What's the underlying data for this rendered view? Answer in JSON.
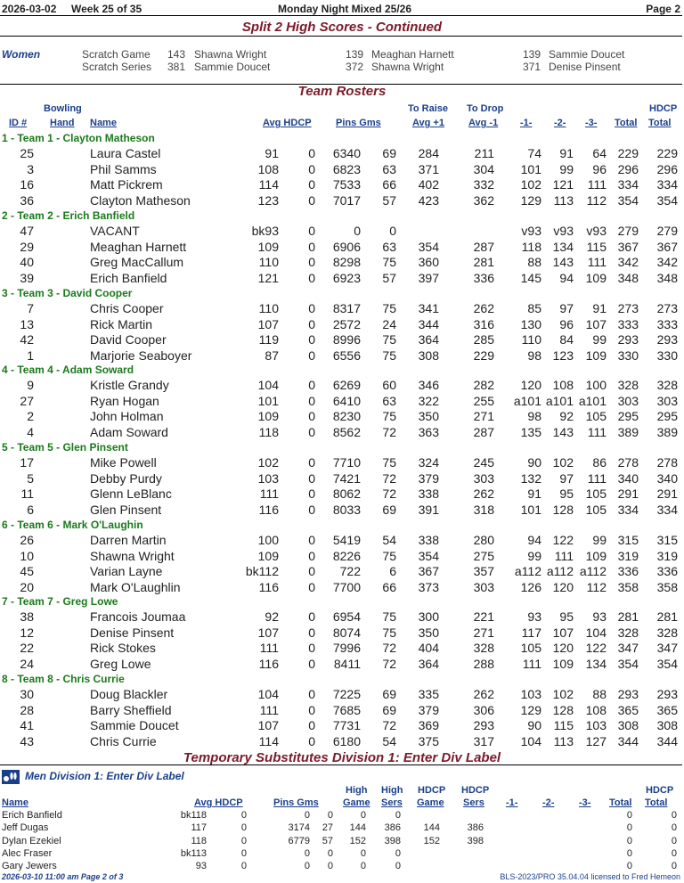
{
  "header": {
    "date": "2026-03-02",
    "week": "Week 25 of 35",
    "league": "Monday Night Mixed 25/26",
    "page": "Page 2"
  },
  "split_title": "Split 2 High Scores - Continued",
  "women": {
    "label": "Women",
    "rows": [
      {
        "cat": "Scratch Game",
        "a_score": "143",
        "a_name": "Shawna Wright",
        "b_score": "139",
        "b_name": "Meaghan Harnett",
        "c_score": "139",
        "c_name": "Sammie Doucet"
      },
      {
        "cat": "Scratch Series",
        "a_score": "381",
        "a_name": "Sammie Doucet",
        "b_score": "372",
        "b_name": "Shawna Wright",
        "c_score": "371",
        "c_name": "Denise Pinsent"
      }
    ]
  },
  "rosters_title": "Team Rosters",
  "roster_columns": {
    "id": "ID #",
    "hand_top": "Bowling",
    "hand": "Hand",
    "name": "Name",
    "avg": "Avg HDCP",
    "pins": "Pins Gms",
    "raise_top": "To Raise",
    "raise": "Avg +1",
    "drop_top": "To Drop",
    "drop": "Avg -1",
    "g1": "-1-",
    "g2": "-2-",
    "g3": "-3-",
    "total": "Total",
    "hdcp_top": "HDCP",
    "hdcp_total": "Total"
  },
  "teams": [
    {
      "title": "1 - Team 1 - Clayton Matheson",
      "players": [
        {
          "id": "25",
          "name": "Laura Castel",
          "avg": "91",
          "hdcp": "0",
          "pins": "6340",
          "gms": "69",
          "raise": "284",
          "drop": "211",
          "g1": "74",
          "g2": "91",
          "g3": "64",
          "total": "229",
          "htotal": "229"
        },
        {
          "id": "3",
          "name": "Phil Samms",
          "avg": "108",
          "hdcp": "0",
          "pins": "6823",
          "gms": "63",
          "raise": "371",
          "drop": "304",
          "g1": "101",
          "g2": "99",
          "g3": "96",
          "total": "296",
          "htotal": "296"
        },
        {
          "id": "16",
          "name": "Matt Pickrem",
          "avg": "114",
          "hdcp": "0",
          "pins": "7533",
          "gms": "66",
          "raise": "402",
          "drop": "332",
          "g1": "102",
          "g2": "121",
          "g3": "111",
          "total": "334",
          "htotal": "334"
        },
        {
          "id": "36",
          "name": "Clayton Matheson",
          "avg": "123",
          "hdcp": "0",
          "pins": "7017",
          "gms": "57",
          "raise": "423",
          "drop": "362",
          "g1": "129",
          "g2": "113",
          "g3": "112",
          "total": "354",
          "htotal": "354"
        }
      ]
    },
    {
      "title": "2 - Team 2 - Erich Banfield",
      "players": [
        {
          "id": "47",
          "name": "VACANT",
          "avg": "bk93",
          "hdcp": "0",
          "pins": "0",
          "gms": "0",
          "raise": "",
          "drop": "",
          "g1": "v93",
          "g2": "v93",
          "g3": "v93",
          "total": "279",
          "htotal": "279"
        },
        {
          "id": "29",
          "name": "Meaghan Harnett",
          "avg": "109",
          "hdcp": "0",
          "pins": "6906",
          "gms": "63",
          "raise": "354",
          "drop": "287",
          "g1": "118",
          "g2": "134",
          "g3": "115",
          "total": "367",
          "htotal": "367"
        },
        {
          "id": "40",
          "name": "Greg MacCallum",
          "avg": "110",
          "hdcp": "0",
          "pins": "8298",
          "gms": "75",
          "raise": "360",
          "drop": "281",
          "g1": "88",
          "g2": "143",
          "g3": "111",
          "total": "342",
          "htotal": "342"
        },
        {
          "id": "39",
          "name": "Erich Banfield",
          "avg": "121",
          "hdcp": "0",
          "pins": "6923",
          "gms": "57",
          "raise": "397",
          "drop": "336",
          "g1": "145",
          "g2": "94",
          "g3": "109",
          "total": "348",
          "htotal": "348"
        }
      ]
    },
    {
      "title": "3 - Team 3 - David Cooper",
      "players": [
        {
          "id": "7",
          "name": "Chris Cooper",
          "avg": "110",
          "hdcp": "0",
          "pins": "8317",
          "gms": "75",
          "raise": "341",
          "drop": "262",
          "g1": "85",
          "g2": "97",
          "g3": "91",
          "total": "273",
          "htotal": "273"
        },
        {
          "id": "13",
          "name": "Rick Martin",
          "avg": "107",
          "hdcp": "0",
          "pins": "2572",
          "gms": "24",
          "raise": "344",
          "drop": "316",
          "g1": "130",
          "g2": "96",
          "g3": "107",
          "total": "333",
          "htotal": "333"
        },
        {
          "id": "42",
          "name": "David Cooper",
          "avg": "119",
          "hdcp": "0",
          "pins": "8996",
          "gms": "75",
          "raise": "364",
          "drop": "285",
          "g1": "110",
          "g2": "84",
          "g3": "99",
          "total": "293",
          "htotal": "293"
        },
        {
          "id": "1",
          "name": "Marjorie Seaboyer",
          "avg": "87",
          "hdcp": "0",
          "pins": "6556",
          "gms": "75",
          "raise": "308",
          "drop": "229",
          "g1": "98",
          "g2": "123",
          "g3": "109",
          "total": "330",
          "htotal": "330"
        }
      ]
    },
    {
      "title": "4 - Team 4 - Adam Soward",
      "players": [
        {
          "id": "9",
          "name": "Kristle Grandy",
          "avg": "104",
          "hdcp": "0",
          "pins": "6269",
          "gms": "60",
          "raise": "346",
          "drop": "282",
          "g1": "120",
          "g2": "108",
          "g3": "100",
          "total": "328",
          "htotal": "328"
        },
        {
          "id": "27",
          "name": "Ryan Hogan",
          "avg": "101",
          "hdcp": "0",
          "pins": "6410",
          "gms": "63",
          "raise": "322",
          "drop": "255",
          "g1": "a101",
          "g2": "a101",
          "g3": "a101",
          "total": "303",
          "htotal": "303"
        },
        {
          "id": "2",
          "name": "John Holman",
          "avg": "109",
          "hdcp": "0",
          "pins": "8230",
          "gms": "75",
          "raise": "350",
          "drop": "271",
          "g1": "98",
          "g2": "92",
          "g3": "105",
          "total": "295",
          "htotal": "295"
        },
        {
          "id": "4",
          "name": "Adam Soward",
          "avg": "118",
          "hdcp": "0",
          "pins": "8562",
          "gms": "72",
          "raise": "363",
          "drop": "287",
          "g1": "135",
          "g2": "143",
          "g3": "111",
          "total": "389",
          "htotal": "389"
        }
      ]
    },
    {
      "title": "5 - Team 5 - Glen Pinsent",
      "players": [
        {
          "id": "17",
          "name": "Mike Powell",
          "avg": "102",
          "hdcp": "0",
          "pins": "7710",
          "gms": "75",
          "raise": "324",
          "drop": "245",
          "g1": "90",
          "g2": "102",
          "g3": "86",
          "total": "278",
          "htotal": "278"
        },
        {
          "id": "5",
          "name": "Debby Purdy",
          "avg": "103",
          "hdcp": "0",
          "pins": "7421",
          "gms": "72",
          "raise": "379",
          "drop": "303",
          "g1": "132",
          "g2": "97",
          "g3": "111",
          "total": "340",
          "htotal": "340"
        },
        {
          "id": "11",
          "name": "Glenn LeBlanc",
          "avg": "111",
          "hdcp": "0",
          "pins": "8062",
          "gms": "72",
          "raise": "338",
          "drop": "262",
          "g1": "91",
          "g2": "95",
          "g3": "105",
          "total": "291",
          "htotal": "291"
        },
        {
          "id": "6",
          "name": "Glen Pinsent",
          "avg": "116",
          "hdcp": "0",
          "pins": "8033",
          "gms": "69",
          "raise": "391",
          "drop": "318",
          "g1": "101",
          "g2": "128",
          "g3": "105",
          "total": "334",
          "htotal": "334"
        }
      ]
    },
    {
      "title": "6 - Team 6 - Mark O'Laughin",
      "players": [
        {
          "id": "26",
          "name": "Darren Martin",
          "avg": "100",
          "hdcp": "0",
          "pins": "5419",
          "gms": "54",
          "raise": "338",
          "drop": "280",
          "g1": "94",
          "g2": "122",
          "g3": "99",
          "total": "315",
          "htotal": "315"
        },
        {
          "id": "10",
          "name": "Shawna Wright",
          "avg": "109",
          "hdcp": "0",
          "pins": "8226",
          "gms": "75",
          "raise": "354",
          "drop": "275",
          "g1": "99",
          "g2": "111",
          "g3": "109",
          "total": "319",
          "htotal": "319"
        },
        {
          "id": "45",
          "name": "Varian Layne",
          "avg": "bk112",
          "hdcp": "0",
          "pins": "722",
          "gms": "6",
          "raise": "367",
          "drop": "357",
          "g1": "a112",
          "g2": "a112",
          "g3": "a112",
          "total": "336",
          "htotal": "336"
        },
        {
          "id": "20",
          "name": "Mark O'Laughlin",
          "avg": "116",
          "hdcp": "0",
          "pins": "7700",
          "gms": "66",
          "raise": "373",
          "drop": "303",
          "g1": "126",
          "g2": "120",
          "g3": "112",
          "total": "358",
          "htotal": "358"
        }
      ]
    },
    {
      "title": "7 - Team 7 - Greg Lowe",
      "players": [
        {
          "id": "38",
          "name": "Francois Joumaa",
          "avg": "92",
          "hdcp": "0",
          "pins": "6954",
          "gms": "75",
          "raise": "300",
          "drop": "221",
          "g1": "93",
          "g2": "95",
          "g3": "93",
          "total": "281",
          "htotal": "281"
        },
        {
          "id": "12",
          "name": "Denise Pinsent",
          "avg": "107",
          "hdcp": "0",
          "pins": "8074",
          "gms": "75",
          "raise": "350",
          "drop": "271",
          "g1": "117",
          "g2": "107",
          "g3": "104",
          "total": "328",
          "htotal": "328"
        },
        {
          "id": "22",
          "name": "Rick Stokes",
          "avg": "111",
          "hdcp": "0",
          "pins": "7996",
          "gms": "72",
          "raise": "404",
          "drop": "328",
          "g1": "105",
          "g2": "120",
          "g3": "122",
          "total": "347",
          "htotal": "347"
        },
        {
          "id": "24",
          "name": "Greg Lowe",
          "avg": "116",
          "hdcp": "0",
          "pins": "8411",
          "gms": "72",
          "raise": "364",
          "drop": "288",
          "g1": "111",
          "g2": "109",
          "g3": "134",
          "total": "354",
          "htotal": "354"
        }
      ]
    },
    {
      "title": "8 - Team 8 - Chris Currie",
      "players": [
        {
          "id": "30",
          "name": "Doug Blackler",
          "avg": "104",
          "hdcp": "0",
          "pins": "7225",
          "gms": "69",
          "raise": "335",
          "drop": "262",
          "g1": "103",
          "g2": "102",
          "g3": "88",
          "total": "293",
          "htotal": "293"
        },
        {
          "id": "28",
          "name": "Barry Sheffield",
          "avg": "111",
          "hdcp": "0",
          "pins": "7685",
          "gms": "69",
          "raise": "379",
          "drop": "306",
          "g1": "129",
          "g2": "128",
          "g3": "108",
          "total": "365",
          "htotal": "365"
        },
        {
          "id": "41",
          "name": "Sammie Doucet",
          "avg": "107",
          "hdcp": "0",
          "pins": "7731",
          "gms": "72",
          "raise": "369",
          "drop": "293",
          "g1": "90",
          "g2": "115",
          "g3": "103",
          "total": "308",
          "htotal": "308"
        },
        {
          "id": "43",
          "name": "Chris Currie",
          "avg": "114",
          "hdcp": "0",
          "pins": "6180",
          "gms": "54",
          "raise": "375",
          "drop": "317",
          "g1": "104",
          "g2": "113",
          "g3": "127",
          "total": "344",
          "htotal": "344"
        }
      ]
    }
  ],
  "subs_title": "Temporary Substitutes   Division 1: Enter Div Label",
  "men_label": "Men   Division 1: Enter Div Label",
  "sub_columns": {
    "name": "Name",
    "avg": "Avg HDCP",
    "pins": "Pins Gms",
    "hg_top": "High",
    "hg": "Game",
    "hs_top": "High",
    "hs": "Sers",
    "hdg_top": "HDCP",
    "hdg": "Game",
    "hds_top": "HDCP",
    "hds": "Sers",
    "g1": "-1-",
    "g2": "-2-",
    "g3": "-3-",
    "total": "Total",
    "htotal_top": "HDCP",
    "htotal": "Total"
  },
  "subs": [
    {
      "name": "Erich Banfield",
      "avg": "bk118",
      "hdcp": "0",
      "pins": "0",
      "gms": "0",
      "hg": "0",
      "hs": "0",
      "hdg": "",
      "hds": "",
      "total": "0",
      "htotal": "0"
    },
    {
      "name": "Jeff Dugas",
      "avg": "117",
      "hdcp": "0",
      "pins": "3174",
      "gms": "27",
      "hg": "144",
      "hs": "386",
      "hdg": "144",
      "hds": "386",
      "total": "0",
      "htotal": "0"
    },
    {
      "name": "Dylan Ezekiel",
      "avg": "118",
      "hdcp": "0",
      "pins": "6779",
      "gms": "57",
      "hg": "152",
      "hs": "398",
      "hdg": "152",
      "hds": "398",
      "total": "0",
      "htotal": "0"
    },
    {
      "name": "Alec Fraser",
      "avg": "bk113",
      "hdcp": "0",
      "pins": "0",
      "gms": "0",
      "hg": "0",
      "hs": "0",
      "hdg": "",
      "hds": "",
      "total": "0",
      "htotal": "0"
    },
    {
      "name": "Gary Jewers",
      "avg": "93",
      "hdcp": "0",
      "pins": "0",
      "gms": "0",
      "hg": "0",
      "hs": "0",
      "hdg": "",
      "hds": "",
      "total": "0",
      "htotal": "0"
    }
  ],
  "footer": {
    "left": "2026-03-10  11:00 am   Page 2 of 3",
    "right": "BLS-2023/PRO 35.04.04 licensed to Fred Hemeon"
  },
  "colors": {
    "section": "#7a1a2a",
    "header_blue": "#1a3f8a",
    "team_green": "#1a7a1a"
  }
}
